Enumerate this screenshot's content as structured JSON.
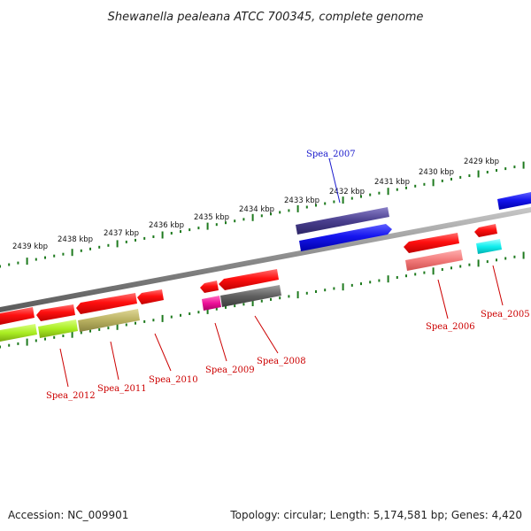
{
  "title": "Shewanella pealeana ATCC 700345, complete genome",
  "footer": {
    "accession": "Accession: NC_009901",
    "topology": "Topology: circular; Length: 5,174,581 bp; Genes: 4,420"
  },
  "kbp_ticks": [
    "2439 kbp",
    "2438 kbp",
    "2437 kbp",
    "2436 kbp",
    "2435 kbp",
    "2434 kbp",
    "2433 kbp",
    "2432 kbp",
    "2431 kbp",
    "2430 kbp",
    "2429 kbp"
  ],
  "genes": [
    {
      "id": "Spea_2007",
      "label": "Spea_2007",
      "label_color": "#1a1acc",
      "strand": "+"
    },
    {
      "id": "Spea_2005",
      "label": "Spea_2005",
      "label_color": "#cc0000",
      "strand": "-"
    },
    {
      "id": "Spea_2006",
      "label": "Spea_2006",
      "label_color": "#cc0000",
      "strand": "-"
    },
    {
      "id": "Spea_2008",
      "label": "Spea_2008",
      "label_color": "#cc0000",
      "strand": "-"
    },
    {
      "id": "Spea_2009",
      "label": "Spea_2009",
      "label_color": "#cc0000",
      "strand": "-"
    },
    {
      "id": "Spea_2010",
      "label": "Spea_2010",
      "label_color": "#cc0000",
      "strand": "-"
    },
    {
      "id": "Spea_2011",
      "label": "Spea_2011",
      "label_color": "#cc0000",
      "strand": "-"
    },
    {
      "id": "Spea_2012",
      "label": "Spea_2012",
      "label_color": "#cc0000",
      "strand": "-"
    }
  ],
  "colors": {
    "backbone": "#8a8a8a",
    "tick": "#1e7a1e",
    "gene_red": "#ff1010",
    "gene_blue": "#1515ee",
    "cog_purple": "#4a3f8e",
    "cog_salmon": "#f27a7a",
    "cog_cyan": "#11eeee",
    "cog_magenta": "#ee1199",
    "cog_gray": "#606060",
    "cog_olive": "#b8b060",
    "cog_lime": "#aaee22"
  }
}
